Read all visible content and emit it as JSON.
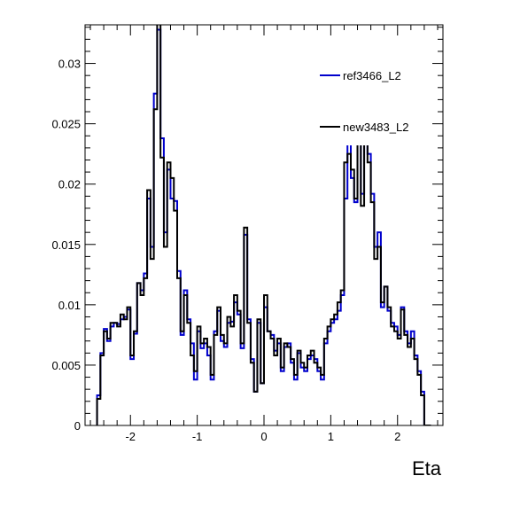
{
  "chart_data": {
    "type": "line",
    "title": "",
    "xlabel": "Eta",
    "ylabel": "",
    "xlim": [
      -2.68,
      2.68
    ],
    "ylim": [
      0,
      0.0332
    ],
    "grid": false,
    "legend_position": "top-right",
    "legend_header": "",
    "x_ticks": [
      -2,
      -1,
      0,
      1,
      2
    ],
    "x_tick_labels": [
      "-2",
      "-1",
      "0",
      "1",
      "2"
    ],
    "y_ticks": [
      0,
      0.005,
      0.01,
      0.015,
      0.02,
      0.025,
      0.03
    ],
    "y_tick_labels": [
      "0",
      "0.005",
      "0.01",
      "0.015",
      "0.02",
      "0.025",
      "0.03"
    ],
    "bin_low": -2.5,
    "bin_width": 0.05,
    "series": [
      {
        "name": "ref3466_L2",
        "color": "#0000cc",
        "values": [
          0.0025,
          0.006,
          0.008,
          0.007,
          0.0082,
          0.0085,
          0.0084,
          0.0088,
          0.009,
          0.0096,
          0.0055,
          0.0076,
          0.0118,
          0.0112,
          0.0126,
          0.0188,
          0.0148,
          0.0275,
          0.0328,
          0.0238,
          0.016,
          0.0212,
          0.0188,
          0.0186,
          0.0128,
          0.0075,
          0.0112,
          0.0088,
          0.0068,
          0.0038,
          0.0078,
          0.0064,
          0.0068,
          0.0058,
          0.0038,
          0.0078,
          0.0095,
          0.007,
          0.0065,
          0.0085,
          0.0086,
          0.0102,
          0.0092,
          0.0064,
          0.0158,
          0.0088,
          0.0055,
          0.0028,
          0.0085,
          0.0035,
          0.0098,
          0.0078,
          0.0075,
          0.0062,
          0.0068,
          0.0045,
          0.0065,
          0.0068,
          0.0052,
          0.0038,
          0.006,
          0.0048,
          0.0045,
          0.0055,
          0.0058,
          0.0055,
          0.0045,
          0.0038,
          0.0068,
          0.0078,
          0.0085,
          0.0088,
          0.0095,
          0.0108,
          0.0188,
          0.0238,
          0.0205,
          0.0185,
          0.0262,
          0.0192,
          0.0316,
          0.0225,
          0.0192,
          0.0148,
          0.016,
          0.0098,
          0.0115,
          0.0095,
          0.0085,
          0.0082,
          0.0075,
          0.0098,
          0.0078,
          0.0068,
          0.0078,
          0.0058,
          0.0045,
          0.0028,
          0.0,
          0.0
        ]
      },
      {
        "name": "new3483_L2",
        "color": "#000000",
        "values": [
          0.0022,
          0.0058,
          0.0078,
          0.0072,
          0.0085,
          0.0085,
          0.0082,
          0.0092,
          0.0088,
          0.0098,
          0.0058,
          0.0078,
          0.0118,
          0.0108,
          0.0122,
          0.0195,
          0.0138,
          0.0262,
          0.0336,
          0.0222,
          0.0148,
          0.0218,
          0.0205,
          0.0178,
          0.0122,
          0.0078,
          0.0108,
          0.0085,
          0.0058,
          0.0045,
          0.0082,
          0.0068,
          0.0072,
          0.0065,
          0.0042,
          0.0075,
          0.0098,
          0.0075,
          0.0068,
          0.009,
          0.0082,
          0.0108,
          0.0095,
          0.0068,
          0.0164,
          0.0085,
          0.0052,
          0.0028,
          0.0088,
          0.0035,
          0.0108,
          0.0078,
          0.0072,
          0.0058,
          0.0072,
          0.0048,
          0.0068,
          0.0065,
          0.0055,
          0.0042,
          0.0062,
          0.0052,
          0.0048,
          0.0058,
          0.0062,
          0.0052,
          0.0048,
          0.0042,
          0.0072,
          0.0082,
          0.0088,
          0.0092,
          0.0102,
          0.0112,
          0.0218,
          0.0225,
          0.0212,
          0.0188,
          0.0262,
          0.0182,
          0.0312,
          0.0218,
          0.0185,
          0.0138,
          0.0148,
          0.0102,
          0.0115,
          0.0098,
          0.0082,
          0.0078,
          0.0072,
          0.0096,
          0.0075,
          0.0065,
          0.0072,
          0.0055,
          0.0042,
          0.0025,
          0.0,
          0.0
        ]
      }
    ]
  }
}
